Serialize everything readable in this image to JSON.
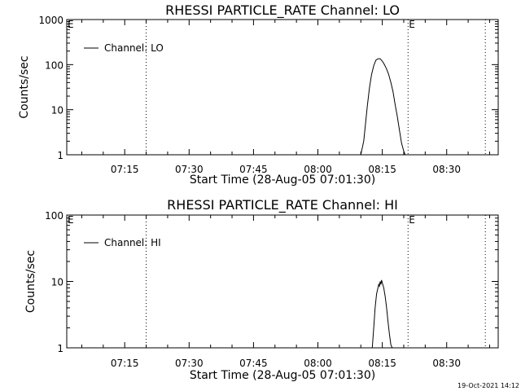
{
  "timestamp": "19-Oct-2021 14:12",
  "chart_data": [
    {
      "type": "line",
      "title": "RHESSI PARTICLE_RATE Channel: LO",
      "xlabel": "Start Time (28-Aug-05 07:01:30)",
      "ylabel": "Counts/sec",
      "yscale": "log",
      "ylim": [
        1,
        1000
      ],
      "xlim": [
        "07:01:30",
        "08:42:00"
      ],
      "x_ticks": [
        "07:15",
        "07:30",
        "07:45",
        "08:00",
        "08:15",
        "08:30"
      ],
      "y_ticks": [
        "1",
        "10",
        "100",
        "1000"
      ],
      "legend": {
        "position": "top-left",
        "entries": [
          "Channel: LO"
        ]
      },
      "marker_lines": [
        {
          "x": "07:20",
          "label": ""
        },
        {
          "x": "08:21",
          "label": "E"
        },
        {
          "x": "08:39",
          "label": ""
        }
      ],
      "corner_marks": {
        "left": "E"
      },
      "series": [
        {
          "name": "Channel: LO",
          "x": [
            "08:10:00",
            "08:10:40",
            "08:11:00",
            "08:11:30",
            "08:12:00",
            "08:12:30",
            "08:13:00",
            "08:13:30",
            "08:14:00",
            "08:14:30",
            "08:15:00",
            "08:15:30",
            "08:16:00",
            "08:16:30",
            "08:17:00",
            "08:17:30",
            "08:18:00",
            "08:18:30",
            "08:19:00",
            "08:19:30",
            "08:20:00",
            "08:20:20"
          ],
          "values": [
            1,
            2,
            4,
            12,
            30,
            60,
            95,
            125,
            135,
            135,
            120,
            100,
            80,
            60,
            40,
            25,
            13,
            7,
            3.5,
            1.8,
            1.2,
            1
          ]
        }
      ]
    },
    {
      "type": "line",
      "title": "RHESSI PARTICLE_RATE Channel: HI",
      "xlabel": "Start Time (28-Aug-05 07:01:30)",
      "ylabel": "Counts/sec",
      "yscale": "log",
      "ylim": [
        1,
        100
      ],
      "xlim": [
        "07:01:30",
        "08:42:00"
      ],
      "x_ticks": [
        "07:15",
        "07:30",
        "07:45",
        "08:00",
        "08:15",
        "08:30"
      ],
      "y_ticks": [
        "1",
        "10",
        "100"
      ],
      "legend": {
        "position": "top-left",
        "entries": [
          "Channel: HI"
        ]
      },
      "marker_lines": [
        {
          "x": "07:20",
          "label": ""
        },
        {
          "x": "08:21",
          "label": "E"
        },
        {
          "x": "08:39",
          "label": ""
        }
      ],
      "corner_marks": {
        "left": "E"
      },
      "series": [
        {
          "name": "Channel: HI",
          "x": [
            "08:12:40",
            "08:13:00",
            "08:13:20",
            "08:13:40",
            "08:14:00",
            "08:14:10",
            "08:14:20",
            "08:14:30",
            "08:14:40",
            "08:14:50",
            "08:15:00",
            "08:15:20",
            "08:15:40",
            "08:16:00",
            "08:16:20",
            "08:16:40",
            "08:17:00",
            "08:17:20"
          ],
          "values": [
            1,
            2,
            4,
            6.5,
            8,
            9,
            8.5,
            10,
            9,
            10.5,
            9.5,
            8,
            6,
            4,
            2.5,
            1.6,
            1.1,
            1
          ]
        }
      ]
    }
  ]
}
